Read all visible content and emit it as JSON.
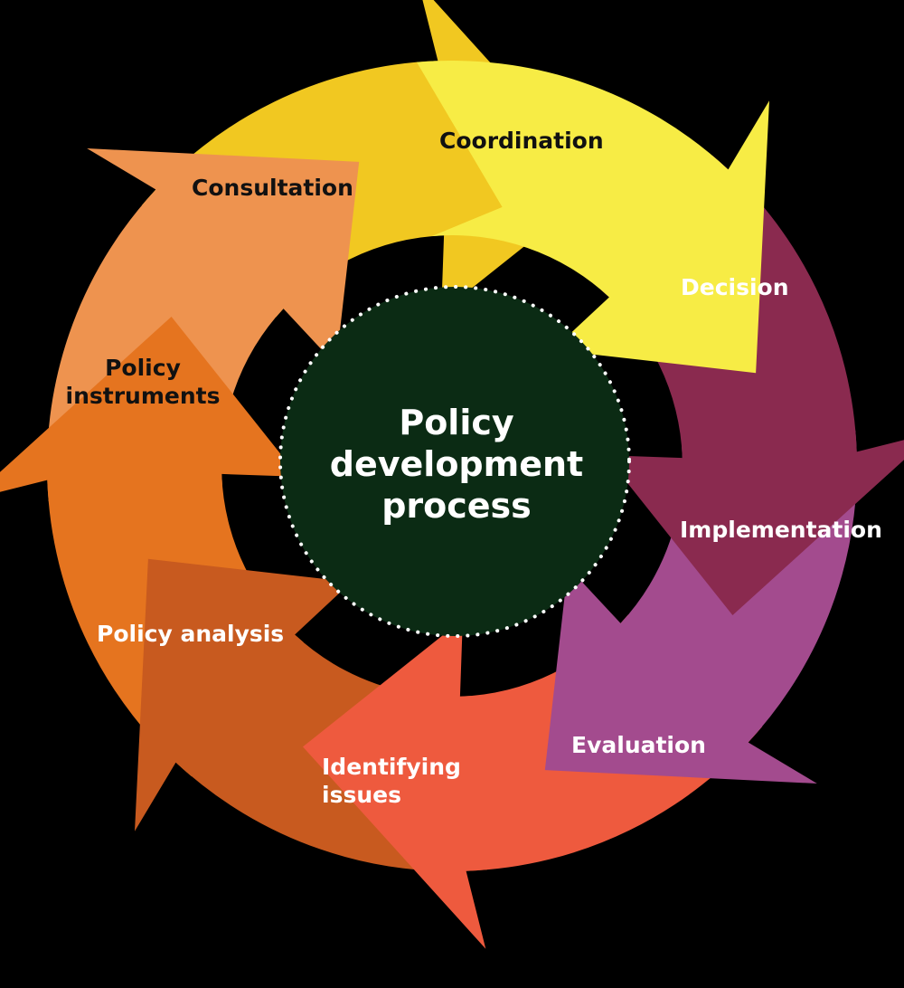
{
  "diagram": {
    "center_title": [
      "Policy",
      "development",
      "process"
    ],
    "stages": [
      {
        "name": "Coordination",
        "lines": [
          "Coordination"
        ],
        "color": "#F7EC45",
        "text": "dark"
      },
      {
        "name": "Decision",
        "lines": [
          "Decision"
        ],
        "color": "#8A2A4F",
        "text": "light"
      },
      {
        "name": "Implementation",
        "lines": [
          "Implementation"
        ],
        "color": "#A34B8E",
        "text": "light"
      },
      {
        "name": "Evaluation",
        "lines": [
          "Evaluation"
        ],
        "color": "#EE5A3E",
        "text": "light"
      },
      {
        "name": "Identifying issues",
        "lines": [
          "Identifying",
          "issues"
        ],
        "color": "#C85A1F",
        "text": "light"
      },
      {
        "name": "Policy analysis",
        "lines": [
          "Policy analysis"
        ],
        "color": "#E5741F",
        "text": "light"
      },
      {
        "name": "Policy instruments",
        "lines": [
          "Policy",
          "instruments"
        ],
        "color": "#EE934F",
        "text": "dark"
      },
      {
        "name": "Consultation",
        "lines": [
          "Consultation"
        ],
        "color": "#F1C821",
        "text": "dark"
      }
    ],
    "colors": {
      "background": "#000000",
      "center_circle": "#0B2B14",
      "dotted_border": "#FFFFFF"
    }
  }
}
